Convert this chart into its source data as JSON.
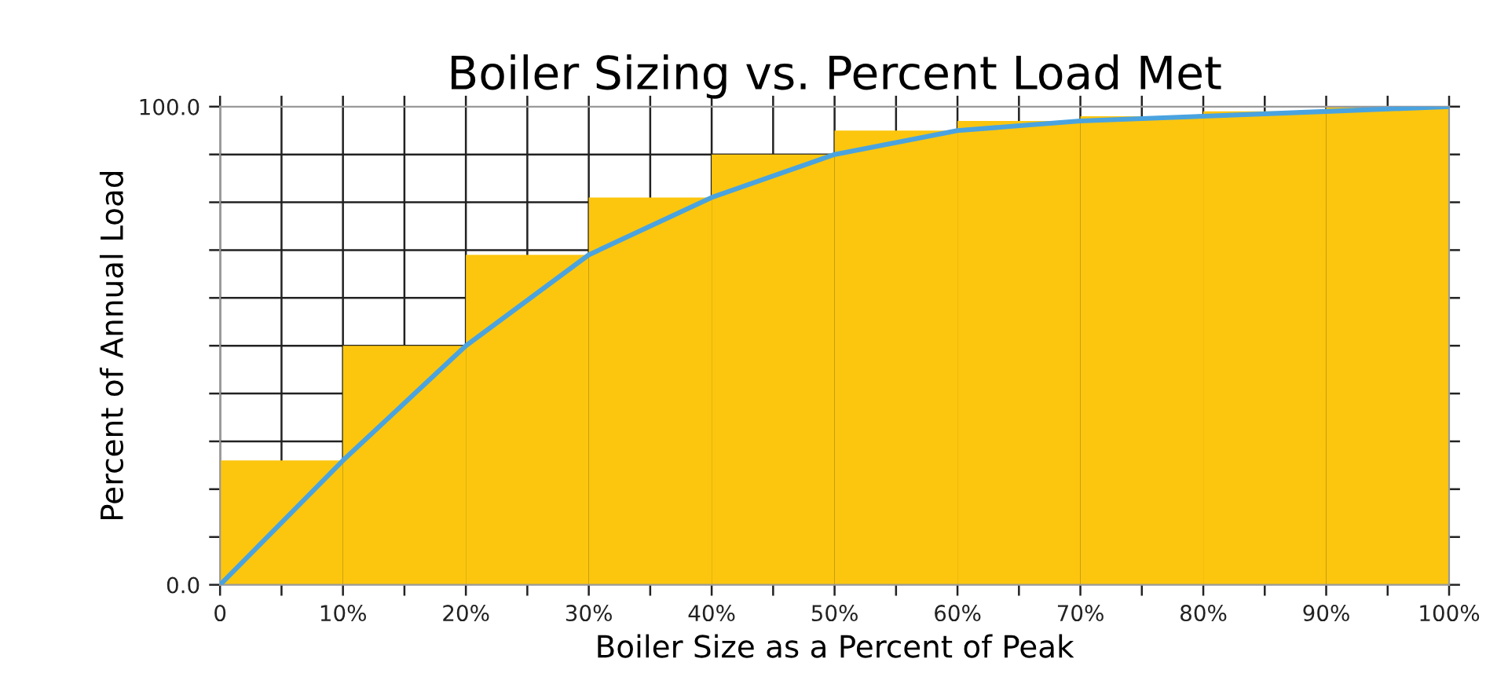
{
  "chart_data": {
    "type": "histogram",
    "title": "Boiler Sizing vs. Percent Load Met",
    "xlabel": "Boiler Size as a Percent of Peak",
    "ylabel": "Percent of Annual Load",
    "series": [
      {
        "color": "#fcc60e",
        "bins": [
          0,
          10,
          20,
          30,
          40,
          50,
          60,
          70,
          80,
          90,
          100
        ],
        "values": [
          26,
          50,
          69,
          81,
          90,
          95,
          97,
          98,
          99,
          100
        ]
      },
      {
        "type": "line",
        "color": "#4aa3df",
        "x": [
          0,
          10,
          20,
          30,
          40,
          50,
          60,
          70,
          80,
          90,
          100
        ],
        "values": [
          0,
          26,
          50,
          69,
          81,
          90,
          95,
          97,
          98,
          99,
          100
        ]
      }
    ],
    "xlim": [
      0,
      100
    ],
    "ylim": [
      0,
      100
    ],
    "xticks": [
      {
        "value": 0,
        "label": "0"
      },
      {
        "value": 5,
        "label": null
      },
      {
        "value": 10,
        "label": "10%"
      },
      {
        "value": 15,
        "label": null
      },
      {
        "value": 20,
        "label": "20%"
      },
      {
        "value": 25,
        "label": null
      },
      {
        "value": 30,
        "label": "30%"
      },
      {
        "value": 35,
        "label": null
      },
      {
        "value": 40,
        "label": "40%"
      },
      {
        "value": 45,
        "label": null
      },
      {
        "value": 50,
        "label": "50%"
      },
      {
        "value": 55,
        "label": null
      },
      {
        "value": 60,
        "label": "60%"
      },
      {
        "value": 65,
        "label": null
      },
      {
        "value": 70,
        "label": "70%"
      },
      {
        "value": 75,
        "label": null
      },
      {
        "value": 80,
        "label": "80%"
      },
      {
        "value": 85,
        "label": null
      },
      {
        "value": 90,
        "label": "90%"
      },
      {
        "value": 95,
        "label": null
      },
      {
        "value": 100,
        "label": "100%"
      }
    ],
    "yticks": [
      {
        "value": 0,
        "label": "0.0"
      },
      {
        "value": 10,
        "label": null
      },
      {
        "value": 20,
        "label": null
      },
      {
        "value": 30,
        "label": null
      },
      {
        "value": 40,
        "label": null
      },
      {
        "value": 50,
        "label": null
      },
      {
        "value": 60,
        "label": null
      },
      {
        "value": 70,
        "label": null
      },
      {
        "value": 80,
        "label": null
      },
      {
        "value": 90,
        "label": null
      },
      {
        "value": 100,
        "label": "100.0"
      }
    ],
    "grid": true,
    "marker": "none",
    "line_style": "solid"
  }
}
